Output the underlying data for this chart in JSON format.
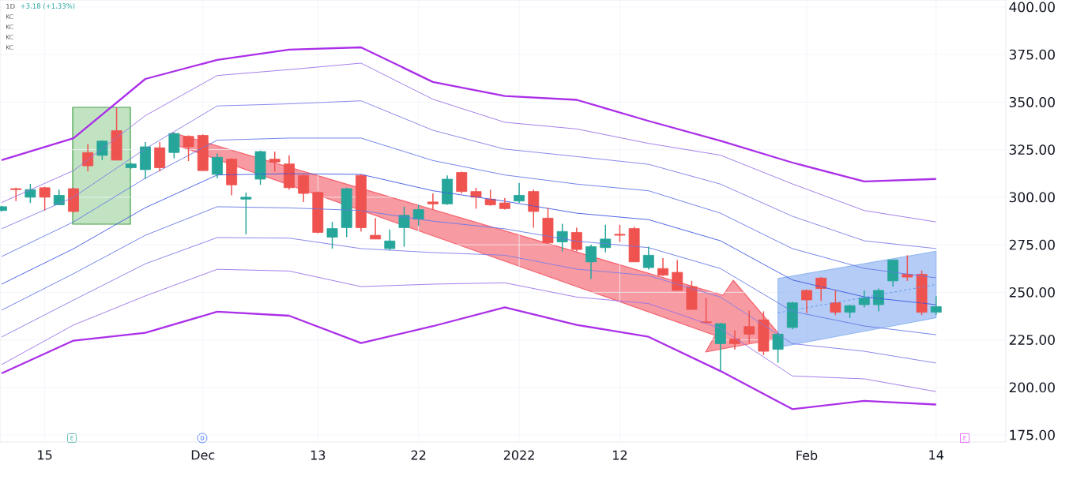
{
  "chart_data": {
    "type": "candlestick",
    "title": "1D",
    "categories": [
      null,
      null,
      null,
      "15",
      null,
      null,
      null,
      null,
      null,
      null,
      null,
      null,
      null,
      null,
      "Dec",
      null,
      null,
      null,
      null,
      null,
      null,
      null,
      "13",
      null,
      null,
      null,
      null,
      null,
      null,
      "22",
      null,
      null,
      null,
      null,
      null,
      null,
      "2022",
      null,
      null,
      null,
      null,
      null,
      null,
      "12",
      null,
      null,
      null,
      null,
      null,
      null,
      null,
      null,
      null,
      null,
      null,
      null,
      "Feb",
      null,
      null,
      null,
      null,
      null,
      null,
      null,
      null,
      "14"
    ],
    "ohlc": [
      [
        293,
        295.5,
        292.5,
        295
      ],
      [
        304.5,
        305,
        298,
        304
      ],
      [
        300,
        307,
        297,
        304
      ],
      [
        305,
        305.5,
        293,
        300
      ],
      [
        296,
        304,
        296,
        301
      ],
      [
        304.5,
        305,
        292,
        292.5
      ],
      [
        323.5,
        328,
        313.5,
        316.5
      ],
      [
        322,
        330,
        319.5,
        329.5
      ],
      [
        335,
        347,
        319.5,
        319.5
      ],
      [
        315.5,
        318,
        315,
        317.5
      ],
      [
        314.5,
        329,
        309.5,
        326.5
      ],
      [
        326,
        329,
        313.5,
        315.5
      ],
      [
        323.5,
        334,
        320.5,
        333.5
      ],
      [
        332,
        332.5,
        319,
        326.5
      ],
      [
        332.5,
        333,
        314,
        314
      ],
      [
        312,
        323,
        310,
        321
      ],
      [
        320,
        320.5,
        301,
        306.5
      ],
      [
        299,
        302.5,
        280.5,
        300
      ],
      [
        309.5,
        324.5,
        306.5,
        324
      ],
      [
        320,
        324,
        313.5,
        318.5
      ],
      [
        317.5,
        322,
        304,
        305
      ],
      [
        311.5,
        312,
        297.5,
        302
      ],
      [
        302.5,
        303,
        281,
        281.5
      ],
      [
        279,
        287,
        273,
        283.5
      ],
      [
        284,
        305,
        279,
        304.5
      ],
      [
        311.5,
        312,
        282,
        284
      ],
      [
        280,
        289,
        278,
        278
      ],
      [
        273,
        283,
        272,
        277
      ],
      [
        284,
        295,
        274,
        290.5
      ],
      [
        288.5,
        296,
        285,
        293.5
      ],
      [
        297.5,
        302,
        293.5,
        296.5
      ],
      [
        296.5,
        311.5,
        296,
        309.5
      ],
      [
        313,
        313.5,
        302,
        303
      ],
      [
        303,
        305,
        294,
        300
      ],
      [
        299,
        304,
        295.5,
        296
      ],
      [
        297,
        299.5,
        293.5,
        294
      ],
      [
        298,
        307.5,
        297,
        301
      ],
      [
        303,
        304,
        284,
        292.5
      ],
      [
        289,
        294.5,
        276,
        276
      ],
      [
        276.5,
        286,
        271.5,
        282
      ],
      [
        281.5,
        284,
        271.5,
        272.5
      ],
      [
        266,
        275,
        257,
        274
      ],
      [
        273.5,
        285.5,
        271,
        278
      ],
      [
        280.5,
        285.5,
        276.5,
        280
      ],
      [
        283.5,
        284.5,
        266,
        266
      ],
      [
        263,
        274,
        262,
        269.5
      ],
      [
        262.5,
        268,
        258.5,
        259
      ],
      [
        260.5,
        267,
        251,
        251
      ],
      [
        253,
        256,
        241,
        241
      ],
      [
        234.5,
        247,
        234,
        234
      ],
      [
        223,
        234,
        209,
        233.5
      ],
      [
        225.5,
        230,
        220,
        223
      ],
      [
        232,
        240.5,
        223.5,
        228
      ],
      [
        235.5,
        240,
        217,
        219
      ],
      [
        220,
        228.5,
        213,
        228
      ],
      [
        231.5,
        245,
        230.5,
        244.5
      ],
      [
        251,
        251.5,
        239,
        246
      ],
      [
        257.5,
        258,
        245.5,
        252
      ],
      [
        244.5,
        251,
        238,
        239.5
      ],
      [
        239.5,
        243.5,
        236.5,
        243
      ],
      [
        243.5,
        251,
        242,
        247
      ],
      [
        243.5,
        252,
        240,
        251
      ],
      [
        256,
        267,
        253,
        267
      ],
      [
        259.5,
        269.5,
        256,
        258
      ],
      [
        259.5,
        261.5,
        238,
        239.5
      ],
      [
        239.5,
        248,
        238,
        242.5
      ]
    ],
    "colors": [
      "#26a69a",
      "#ef5350",
      "#26a69a",
      "#ef5350",
      "#26a69a",
      "#ef5350",
      "#ef5350",
      "#26a69a",
      "#ef5350",
      "#26a69a",
      "#26a69a",
      "#ef5350",
      "#26a69a",
      "#ef5350",
      "#ef5350",
      "#26a69a",
      "#ef5350",
      "#26a69a",
      "#26a69a",
      "#ef5350",
      "#ef5350",
      "#ef5350",
      "#ef5350",
      "#26a69a",
      "#26a69a",
      "#ef5350",
      "#ef5350",
      "#26a69a",
      "#26a69a",
      "#26a69a",
      "#ef5350",
      "#26a69a",
      "#ef5350",
      "#ef5350",
      "#ef5350",
      "#ef5350",
      "#26a69a",
      "#ef5350",
      "#ef5350",
      "#26a69a",
      "#ef5350",
      "#26a69a",
      "#26a69a",
      "#ef5350",
      "#ef5350",
      "#26a69a",
      "#ef5350",
      "#ef5350",
      "#ef5350",
      "#ef5350",
      "#26a69a",
      "#ef5350",
      "#ef5350",
      "#ef5350",
      "#26a69a",
      "#26a69a",
      "#ef5350",
      "#ef5350",
      "#ef5350",
      "#26a69a",
      "#26a69a",
      "#26a69a",
      "#26a69a",
      "#ef5350",
      "#ef5350",
      "#26a69a"
    ],
    "series": [
      {
        "type": "line",
        "color": "#ab2fe8",
        "values": [
          319.5,
          null,
          null,
          null,
          null,
          331,
          null,
          null,
          null,
          null,
          362.2,
          null,
          null,
          null,
          null,
          372.2,
          null,
          null,
          null,
          null,
          377.6,
          null,
          null,
          null,
          null,
          378.8,
          null,
          null,
          null,
          null,
          360.6,
          null,
          null,
          null,
          null,
          353.2,
          null,
          null,
          null,
          null,
          351.2,
          null,
          null,
          null,
          null,
          340.1,
          null,
          null,
          null,
          null,
          329.7,
          null,
          null,
          null,
          null,
          318.2,
          null,
          null,
          null,
          null,
          308.3,
          null,
          null,
          null,
          null,
          309.6
        ]
      },
      {
        "type": "line",
        "color": "#9a72e6",
        "values": [
          297.2,
          null,
          null,
          null,
          null,
          314,
          null,
          null,
          null,
          null,
          342.9,
          null,
          null,
          null,
          null,
          364,
          null,
          null,
          null,
          null,
          367.1,
          null,
          null,
          null,
          null,
          370.5,
          null,
          null,
          null,
          null,
          351.5,
          null,
          null,
          null,
          null,
          339.4,
          null,
          null,
          null,
          null,
          335.9,
          null,
          null,
          null,
          null,
          328.3,
          null,
          null,
          null,
          null,
          322.1,
          null,
          null,
          null,
          null,
          307,
          null,
          null,
          null,
          null,
          293,
          null,
          null,
          null,
          null,
          287
        ]
      },
      {
        "type": "line",
        "color": "#7f7ce6",
        "values": [
          283.4,
          null,
          null,
          null,
          null,
          300,
          null,
          null,
          null,
          null,
          325.5,
          null,
          null,
          null,
          null,
          348,
          null,
          null,
          null,
          null,
          349.1,
          null,
          null,
          null,
          null,
          350.7,
          null,
          null,
          null,
          null,
          335.2,
          null,
          null,
          null,
          null,
          325.3,
          null,
          null,
          null,
          null,
          321.4,
          null,
          null,
          null,
          null,
          317.3,
          null,
          null,
          null,
          null,
          306.9,
          null,
          null,
          null,
          null,
          290,
          null,
          null,
          null,
          null,
          277.1,
          null,
          null,
          null,
          null,
          273
        ]
      },
      {
        "type": "line",
        "color": "#6478e6",
        "values": [
          268.8,
          null,
          null,
          null,
          null,
          287,
          null,
          null,
          null,
          null,
          310,
          null,
          null,
          null,
          null,
          330,
          null,
          null,
          null,
          null,
          331.1,
          null,
          null,
          null,
          null,
          331.1,
          null,
          null,
          null,
          null,
          319.3,
          null,
          null,
          null,
          null,
          311.7,
          null,
          null,
          null,
          null,
          306.9,
          null,
          null,
          null,
          null,
          303.4,
          null,
          null,
          null,
          null,
          291.6,
          null,
          null,
          null,
          null,
          273,
          null,
          null,
          null,
          null,
          262.6,
          null,
          null,
          null,
          null,
          257.6
        ]
      },
      {
        "type": "line",
        "color": "#3d56e0",
        "values": [
          254.3,
          null,
          null,
          null,
          null,
          272.9,
          null,
          null,
          null,
          null,
          294.5,
          null,
          null,
          null,
          null,
          311.7,
          null,
          null,
          null,
          null,
          312.4,
          null,
          null,
          null,
          null,
          312,
          null,
          null,
          null,
          null,
          303.4,
          null,
          null,
          null,
          null,
          297.9,
          null,
          null,
          null,
          null,
          291.6,
          null,
          null,
          null,
          null,
          288.2,
          null,
          null,
          null,
          null,
          277.1,
          null,
          null,
          null,
          null,
          256.5,
          null,
          null,
          null,
          null,
          247.6,
          null,
          null,
          null,
          null,
          243.5
        ]
      },
      {
        "type": "line",
        "color": "#6478e6",
        "values": [
          240.6,
          null,
          null,
          null,
          null,
          259.8,
          null,
          null,
          null,
          null,
          280,
          null,
          null,
          null,
          null,
          295,
          null,
          null,
          null,
          null,
          294.4,
          null,
          null,
          null,
          null,
          293,
          null,
          null,
          null,
          null,
          287.4,
          null,
          null,
          null,
          null,
          283.4,
          null,
          null,
          null,
          null,
          276.9,
          null,
          null,
          null,
          null,
          273.5,
          null,
          null,
          null,
          null,
          262.5,
          null,
          null,
          null,
          null,
          240,
          null,
          null,
          null,
          null,
          232.3,
          null,
          null,
          null,
          null,
          227.7
        ]
      },
      {
        "type": "line",
        "color": "#7f7ce6",
        "values": [
          226.5,
          null,
          null,
          null,
          null,
          245.9,
          null,
          null,
          null,
          null,
          265,
          null,
          null,
          null,
          null,
          278.8,
          null,
          null,
          null,
          null,
          278.5,
          null,
          null,
          null,
          null,
          273,
          null,
          null,
          null,
          null,
          270.9,
          null,
          null,
          null,
          null,
          269.5,
          null,
          null,
          null,
          null,
          262.2,
          null,
          null,
          null,
          null,
          258.8,
          null,
          null,
          null,
          null,
          247.5,
          null,
          null,
          null,
          null,
          223,
          null,
          null,
          null,
          null,
          219,
          null,
          null,
          null,
          null,
          212.8
        ]
      },
      {
        "type": "line",
        "color": "#9a72e6",
        "values": [
          212,
          null,
          null,
          null,
          null,
          232.8,
          null,
          null,
          null,
          null,
          248.1,
          null,
          null,
          null,
          null,
          262.1,
          null,
          null,
          null,
          null,
          261.2,
          null,
          null,
          null,
          null,
          253,
          null,
          null,
          null,
          null,
          254.3,
          null,
          null,
          null,
          null,
          255,
          null,
          null,
          null,
          null,
          247.5,
          null,
          null,
          null,
          null,
          244.1,
          null,
          null,
          null,
          null,
          231,
          null,
          null,
          null,
          null,
          206,
          null,
          null,
          null,
          null,
          204.5,
          null,
          null,
          null,
          null,
          197.8
        ]
      },
      {
        "type": "line",
        "color": "#ab2fe8",
        "values": [
          207.4,
          null,
          null,
          null,
          null,
          224.6,
          null,
          null,
          null,
          null,
          228.7,
          null,
          null,
          null,
          null,
          239.8,
          null,
          null,
          null,
          null,
          237.7,
          null,
          null,
          null,
          null,
          223.3,
          null,
          null,
          null,
          null,
          232.2,
          null,
          null,
          null,
          null,
          242.1,
          null,
          null,
          null,
          null,
          232.9,
          null,
          null,
          null,
          null,
          226.6,
          null,
          null,
          null,
          null,
          208.6,
          null,
          null,
          null,
          null,
          188.6,
          null,
          null,
          null,
          null,
          192.9,
          null,
          null,
          null,
          null,
          191
        ]
      },
      {
        "type": "line",
        "color": "#5a91ec",
        "line_style": "dashed",
        "values": [
          null,
          null,
          null,
          null,
          null,
          null,
          null,
          null,
          null,
          null,
          null,
          null,
          null,
          null,
          null,
          null,
          null,
          null,
          null,
          null,
          null,
          null,
          null,
          null,
          null,
          null,
          null,
          null,
          null,
          null,
          null,
          null,
          null,
          null,
          null,
          null,
          null,
          null,
          null,
          null,
          null,
          null,
          null,
          null,
          null,
          null,
          null,
          null,
          null,
          null,
          null,
          null,
          null,
          null,
          239.2,
          null,
          null,
          null,
          null,
          null,
          null,
          null,
          null,
          null,
          null,
          254.1
        ],
        "lower": [
          null,
          null,
          null,
          null,
          null,
          null,
          null,
          null,
          null,
          null,
          null,
          null,
          null,
          null,
          null,
          null,
          null,
          null,
          null,
          null,
          null,
          null,
          null,
          null,
          null,
          null,
          null,
          null,
          null,
          null,
          null,
          null,
          null,
          null,
          null,
          null,
          null,
          null,
          null,
          null,
          null,
          null,
          null,
          null,
          null,
          null,
          null,
          null,
          null,
          null,
          null,
          null,
          null,
          null,
          221,
          null,
          null,
          null,
          null,
          null,
          null,
          null,
          null,
          null,
          null,
          236.6
        ],
        "upper": [
          null,
          null,
          null,
          null,
          null,
          null,
          null,
          null,
          null,
          null,
          null,
          null,
          null,
          null,
          null,
          null,
          null,
          null,
          null,
          null,
          null,
          null,
          null,
          null,
          null,
          null,
          null,
          null,
          null,
          null,
          null,
          null,
          null,
          null,
          null,
          null,
          null,
          null,
          null,
          null,
          null,
          null,
          null,
          null,
          null,
          null,
          null,
          null,
          null,
          null,
          null,
          null,
          null,
          null,
          257.3,
          null,
          null,
          null,
          null,
          null,
          null,
          null,
          null,
          null,
          null,
          271.6
        ]
      }
    ],
    "ylim": [
      171.3,
      403.7
    ],
    "yticks": [
      {
        "value": 175,
        "label": "175.00"
      },
      {
        "value": 200,
        "label": "200.00"
      },
      {
        "value": 225,
        "label": "225.00"
      },
      {
        "value": 250,
        "label": "250.00"
      },
      {
        "value": 275,
        "label": "275.00"
      },
      {
        "value": 300,
        "label": "300.00"
      },
      {
        "value": 325,
        "label": "325.00"
      },
      {
        "value": 350,
        "label": "350.00"
      },
      {
        "value": 375,
        "label": "375.00"
      },
      {
        "value": 400,
        "label": "400.00"
      }
    ],
    "grid": true,
    "annotations": [
      "+3.18 (+1.33%)",
      "KC",
      "KC",
      "KC",
      "KC",
      "E",
      "D",
      "E"
    ]
  }
}
